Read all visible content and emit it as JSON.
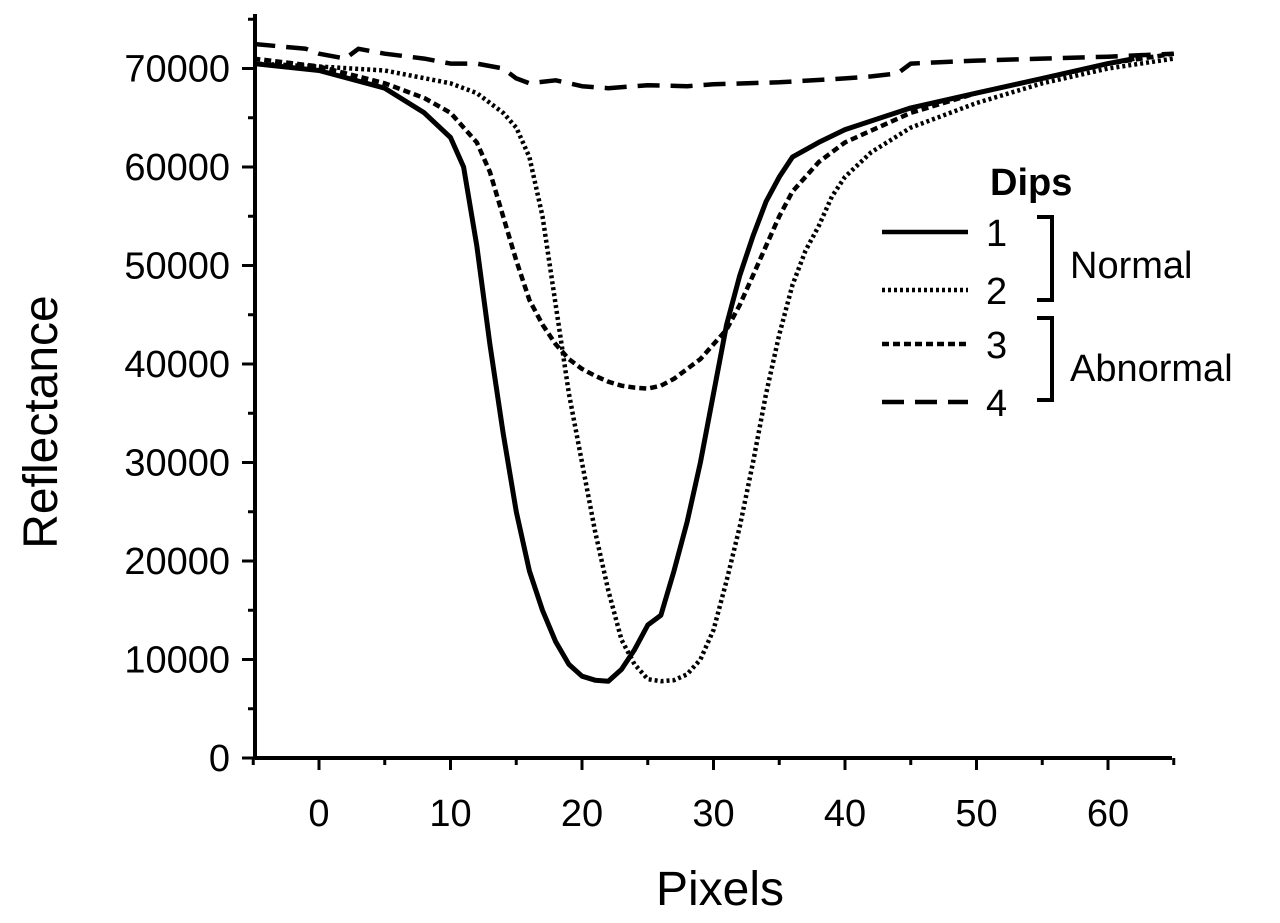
{
  "chart_data": {
    "type": "line",
    "xlabel": "Pixels",
    "ylabel": "Reflectance",
    "xlim": [
      -5,
      65
    ],
    "ylim": [
      0,
      75000
    ],
    "x_ticks": [
      0,
      10,
      20,
      30,
      40,
      50,
      60
    ],
    "y_ticks": [
      0,
      10000,
      20000,
      30000,
      40000,
      50000,
      60000,
      70000
    ],
    "x_tick_labels": [
      "0",
      "10",
      "20",
      "30",
      "40",
      "50",
      "60"
    ],
    "y_tick_labels": [
      "0",
      "10000",
      "20000",
      "30000",
      "40000",
      "50000",
      "60000",
      "70000"
    ],
    "grid": false,
    "legend": {
      "title": "Dips",
      "placement": "right",
      "groups": [
        {
          "label": "Normal",
          "series_indices": [
            0,
            1
          ]
        },
        {
          "label": "Abnormal",
          "series_indices": [
            2,
            3
          ]
        }
      ]
    },
    "series": [
      {
        "name": "1",
        "style": "solid",
        "x": [
          -5,
          0,
          5,
          8,
          10,
          11,
          12,
          13,
          14,
          15,
          16,
          17,
          18,
          19,
          20,
          21,
          22,
          23,
          24,
          25,
          26,
          27,
          28,
          29,
          30,
          31,
          32,
          33,
          34,
          35,
          36,
          38,
          40,
          45,
          50,
          55,
          60,
          62
        ],
        "y": [
          70500,
          69800,
          68000,
          65500,
          63000,
          60000,
          52000,
          42000,
          33000,
          25000,
          19000,
          15000,
          11800,
          9500,
          8300,
          7900,
          7800,
          9000,
          11000,
          13500,
          14500,
          19000,
          24000,
          30000,
          37000,
          44000,
          49000,
          53000,
          56500,
          59000,
          61000,
          62500,
          63800,
          66000,
          67500,
          69000,
          70500,
          71000
        ]
      },
      {
        "name": "2",
        "style": "dotted",
        "x": [
          -5,
          0,
          5,
          10,
          12,
          14,
          15,
          16,
          17,
          18,
          19,
          20,
          21,
          22,
          23,
          24,
          25,
          26,
          27,
          28,
          29,
          30,
          31,
          32,
          33,
          34,
          35,
          36,
          37,
          38,
          39,
          40,
          42,
          45,
          50,
          55,
          60,
          65
        ],
        "y": [
          70500,
          70200,
          69800,
          68500,
          67500,
          65500,
          64000,
          61000,
          55000,
          46000,
          37000,
          30000,
          23000,
          17000,
          12000,
          9500,
          8000,
          7800,
          7900,
          8500,
          10000,
          13000,
          18000,
          23500,
          30000,
          37000,
          43000,
          48000,
          51500,
          54000,
          57000,
          59000,
          61500,
          64000,
          66500,
          68500,
          70000,
          71000
        ]
      },
      {
        "name": "3",
        "style": "short-dash",
        "x": [
          -5,
          0,
          5,
          8,
          10,
          12,
          13,
          14,
          15,
          16,
          17,
          18,
          19,
          20,
          21,
          22,
          23,
          24,
          25,
          26,
          27,
          28,
          29,
          30,
          31,
          32,
          33,
          34,
          35,
          36,
          38,
          40,
          45,
          50,
          55,
          60,
          65
        ],
        "y": [
          71000,
          70200,
          68500,
          67000,
          65500,
          62500,
          59500,
          55000,
          50500,
          46500,
          44000,
          42000,
          40500,
          39500,
          38800,
          38200,
          37800,
          37600,
          37500,
          37800,
          38500,
          39500,
          40500,
          42000,
          43500,
          46000,
          49000,
          52000,
          55000,
          57500,
          60500,
          62500,
          65500,
          67500,
          69000,
          70500,
          71500
        ]
      },
      {
        "name": "4",
        "style": "long-dash",
        "x": [
          -5,
          -1,
          0,
          2,
          3,
          5,
          8,
          10,
          12,
          14,
          15,
          16,
          18,
          20,
          22,
          25,
          28,
          30,
          35,
          40,
          42,
          44,
          45,
          50,
          55,
          60,
          65
        ],
        "y": [
          72500,
          72000,
          71500,
          71000,
          72000,
          71500,
          71000,
          70500,
          70500,
          70000,
          69000,
          68500,
          68800,
          68200,
          68000,
          68300,
          68200,
          68400,
          68600,
          69000,
          69200,
          69500,
          70500,
          70800,
          71000,
          71200,
          71500
        ]
      }
    ]
  }
}
